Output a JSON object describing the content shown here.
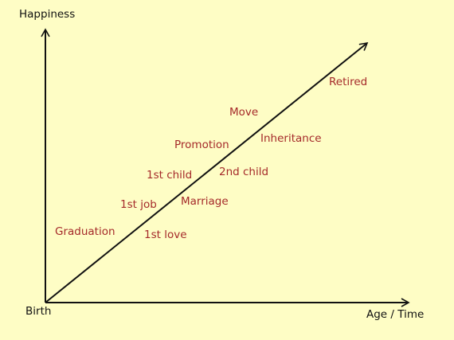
{
  "axes": {
    "y_label": "Happiness",
    "x_label": "Age / Time",
    "origin_label": "Birth"
  },
  "events": [
    {
      "label": "Graduation"
    },
    {
      "label": "1st love"
    },
    {
      "label": "1st job"
    },
    {
      "label": "Marriage"
    },
    {
      "label": "1st child"
    },
    {
      "label": "2nd child"
    },
    {
      "label": "Promotion"
    },
    {
      "label": "Inheritance"
    },
    {
      "label": "Move"
    },
    {
      "label": "Retired"
    }
  ],
  "colors": {
    "background": "#fefdc5",
    "axis": "#111111",
    "label": "#a52a2a"
  }
}
